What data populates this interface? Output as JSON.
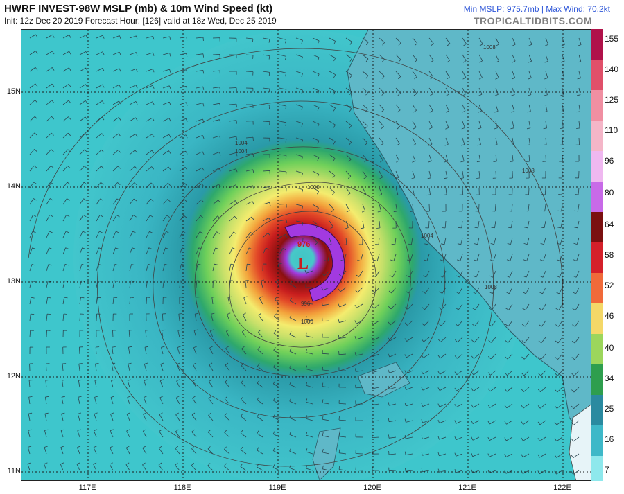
{
  "header": {
    "title": "HWRF INVEST-98W MSLP (mb) & 10m Wind Speed (kt)",
    "subtitle": "Init: 12z Dec 20 2019   Forecast Hour: [126]   valid at 18z Wed, Dec 25 2019",
    "stats": "Min MSLP: 975.7mb | Max Wind: 70.2kt",
    "brand": "TROPICALTIDBITS.COM"
  },
  "map": {
    "lat_labels": [
      "15N",
      "14N",
      "13N",
      "12N",
      "11N"
    ],
    "lon_labels": [
      "117E",
      "118E",
      "119E",
      "120E",
      "121E",
      "122E"
    ],
    "low_label": "L",
    "low_value": "976",
    "isobar_labels": [
      "1004",
      "1004",
      "1000",
      "996",
      "1000",
      "1004",
      "1008",
      "1008",
      "1008"
    ]
  },
  "colorbar": {
    "labels": [
      "155",
      "140",
      "125",
      "110",
      "96",
      "80",
      "64",
      "58",
      "52",
      "46",
      "40",
      "34",
      "25",
      "16",
      "7"
    ]
  },
  "colors": {
    "ocean": "#3ec6cc",
    "land": "#5fb8c8",
    "ring_green": "#6fd05a",
    "ring_yellow": "#f4ec6e",
    "ring_red": "#c81e1e",
    "ring_purple": "#a23ae0",
    "eye": "#43c4c4"
  }
}
